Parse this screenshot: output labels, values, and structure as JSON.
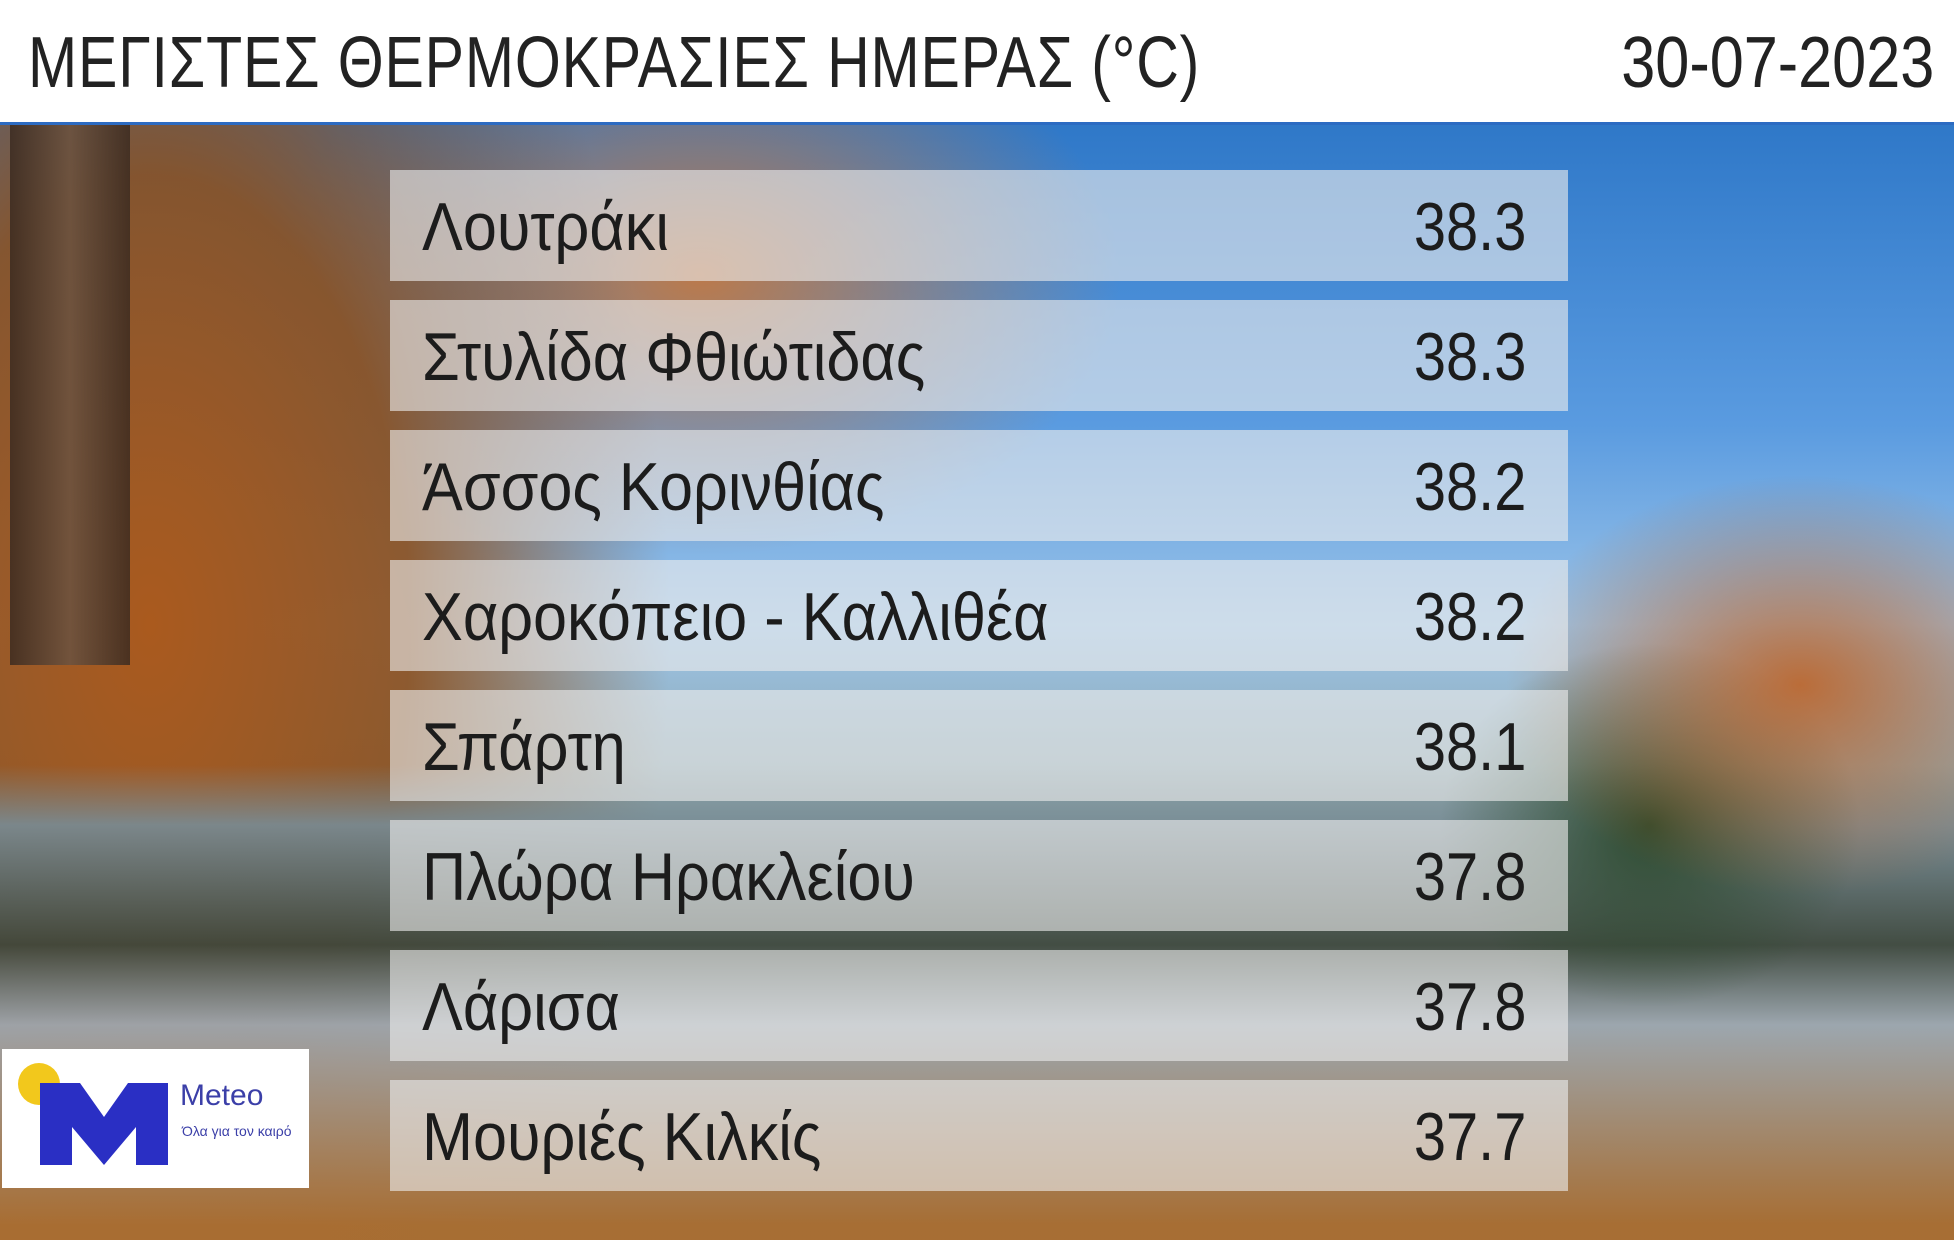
{
  "header": {
    "title": "ΜΕΓΙΣΤΕΣ ΘΕΡΜΟΚΡΑΣΙΕΣ ΗΜΕΡΑΣ (°C)",
    "date": "30-07-2023"
  },
  "rows": [
    {
      "name": "Λουτράκι",
      "value": "38.3"
    },
    {
      "name": "Στυλίδα Φθιώτιδας",
      "value": "38.3"
    },
    {
      "name": "Άσσος Κορινθίας",
      "value": "38.2"
    },
    {
      "name": "Χαροκόπειο - Καλλιθέα",
      "value": "38.2"
    },
    {
      "name": "Σπάρτη",
      "value": "38.1"
    },
    {
      "name": "Πλώρα Ηρακλείου",
      "value": "37.8"
    },
    {
      "name": "Λάρισα",
      "value": "37.8"
    },
    {
      "name": "Μουριές Κιλκίς",
      "value": "37.7"
    }
  ],
  "logo": {
    "brand": "Meteo",
    "tagline": "Όλα για τον καιρό",
    "colors": {
      "blue": "#2a2fc4",
      "sun": "#f2c81c"
    }
  },
  "colors": {
    "accent": "#2c6bc2"
  }
}
